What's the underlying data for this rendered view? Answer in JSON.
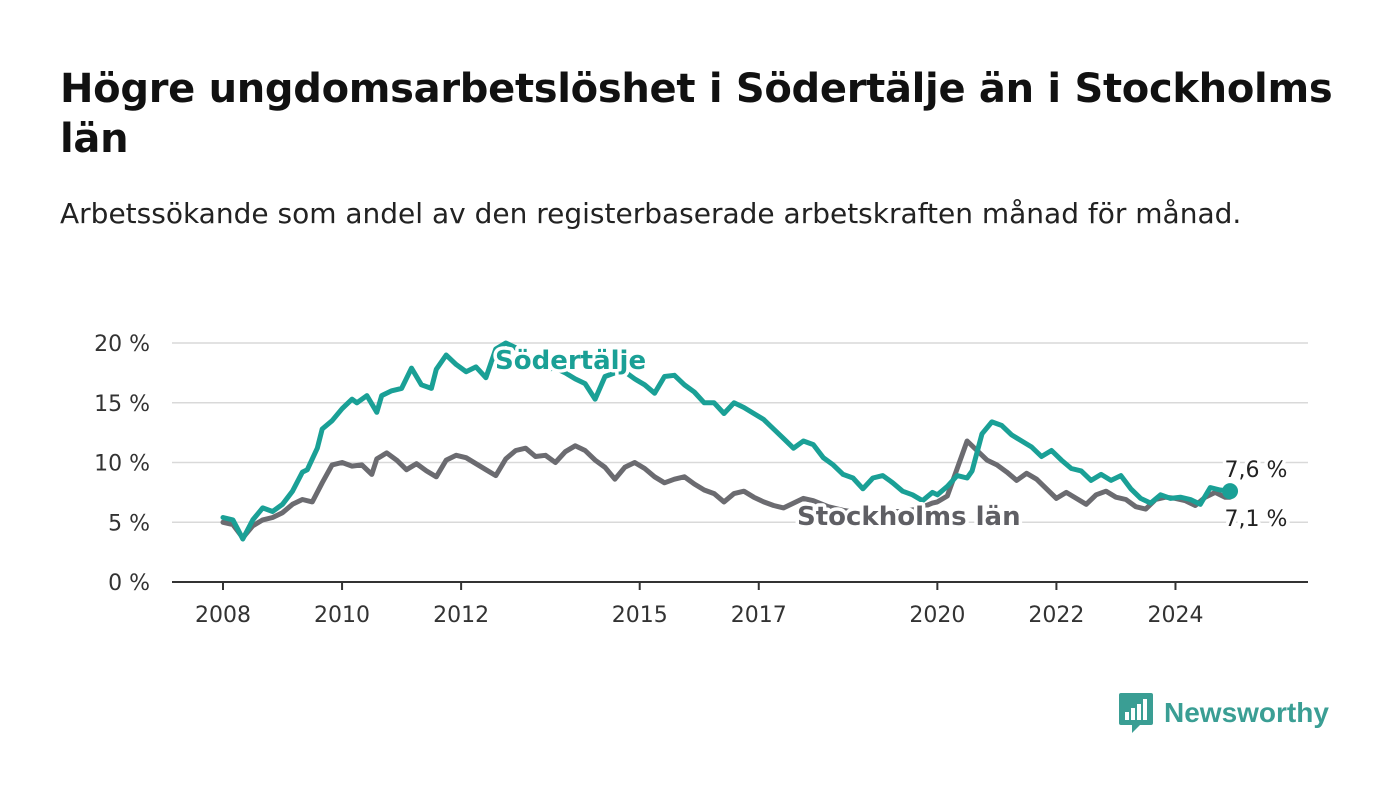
{
  "title": "Högre ungdomsarbetslöshet i Södertälje än i Stockholms län",
  "subtitle": "Arbetssökande som andel av den registerbaserade arbetskraften månad för månad.",
  "brand": {
    "name": "Newsworthy",
    "color": "#3a9e94",
    "icon": "bar-chart-logo-icon"
  },
  "chart_data": {
    "type": "line",
    "grid": true,
    "legend": "inline labels on lines",
    "ylim": [
      0,
      20
    ],
    "xlim": [
      "2008-01",
      "2025-12"
    ],
    "y_ticks": [
      {
        "value": 0,
        "label": "0 %"
      },
      {
        "value": 5,
        "label": "5 %"
      },
      {
        "value": 10,
        "label": "10 %"
      },
      {
        "value": 15,
        "label": "15 %"
      },
      {
        "value": 20,
        "label": "20 %"
      }
    ],
    "x_ticks": [
      {
        "value": "2008-01",
        "label": "2008"
      },
      {
        "value": "2010-01",
        "label": "2010"
      },
      {
        "value": "2012-01",
        "label": "2012"
      },
      {
        "value": "2015-01",
        "label": "2015"
      },
      {
        "value": "2017-01",
        "label": "2017"
      },
      {
        "value": "2020-01",
        "label": "2020"
      },
      {
        "value": "2022-01",
        "label": "2022"
      },
      {
        "value": "2024-01",
        "label": "2024"
      }
    ],
    "series": [
      {
        "name": "Södertälje",
        "color": "#1aa096",
        "end_label": "7,6 %",
        "values": [
          [
            "2008-01",
            5.4
          ],
          [
            "2008-03",
            5.2
          ],
          [
            "2008-04",
            4.4
          ],
          [
            "2008-05",
            3.6
          ],
          [
            "2008-07",
            5.2
          ],
          [
            "2008-09",
            6.2
          ],
          [
            "2008-11",
            5.9
          ],
          [
            "2009-01",
            6.5
          ],
          [
            "2009-03",
            7.6
          ],
          [
            "2009-05",
            9.2
          ],
          [
            "2009-06",
            9.4
          ],
          [
            "2009-08",
            11.2
          ],
          [
            "2009-09",
            12.8
          ],
          [
            "2009-11",
            13.5
          ],
          [
            "2010-01",
            14.5
          ],
          [
            "2010-03",
            15.3
          ],
          [
            "2010-04",
            15.0
          ],
          [
            "2010-06",
            15.6
          ],
          [
            "2010-08",
            14.2
          ],
          [
            "2010-09",
            15.6
          ],
          [
            "2010-11",
            16.0
          ],
          [
            "2011-01",
            16.2
          ],
          [
            "2011-03",
            17.9
          ],
          [
            "2011-05",
            16.5
          ],
          [
            "2011-07",
            16.2
          ],
          [
            "2011-08",
            17.8
          ],
          [
            "2011-10",
            19.0
          ],
          [
            "2011-12",
            18.2
          ],
          [
            "2012-02",
            17.6
          ],
          [
            "2012-04",
            18.0
          ],
          [
            "2012-06",
            17.1
          ],
          [
            "2012-08",
            19.5
          ],
          [
            "2012-10",
            20.0
          ],
          [
            "2012-12",
            19.6
          ],
          [
            "2013-02",
            18.8
          ],
          [
            "2013-04",
            18.4
          ],
          [
            "2013-06",
            17.8
          ],
          [
            "2013-08",
            17.9
          ],
          [
            "2013-10",
            17.5
          ],
          [
            "2013-12",
            17.0
          ],
          [
            "2014-02",
            16.6
          ],
          [
            "2014-04",
            15.3
          ],
          [
            "2014-06",
            17.2
          ],
          [
            "2014-08",
            17.5
          ],
          [
            "2014-10",
            17.6
          ],
          [
            "2014-12",
            17.0
          ],
          [
            "2015-02",
            16.5
          ],
          [
            "2015-04",
            15.8
          ],
          [
            "2015-06",
            17.2
          ],
          [
            "2015-08",
            17.3
          ],
          [
            "2015-10",
            16.5
          ],
          [
            "2015-12",
            15.9
          ],
          [
            "2016-02",
            15.0
          ],
          [
            "2016-04",
            15.0
          ],
          [
            "2016-06",
            14.1
          ],
          [
            "2016-08",
            15.0
          ],
          [
            "2016-10",
            14.6
          ],
          [
            "2016-12",
            14.1
          ],
          [
            "2017-02",
            13.6
          ],
          [
            "2017-04",
            12.8
          ],
          [
            "2017-06",
            12.0
          ],
          [
            "2017-08",
            11.2
          ],
          [
            "2017-10",
            11.8
          ],
          [
            "2017-12",
            11.5
          ],
          [
            "2018-02",
            10.4
          ],
          [
            "2018-04",
            9.8
          ],
          [
            "2018-06",
            9.0
          ],
          [
            "2018-08",
            8.7
          ],
          [
            "2018-10",
            7.8
          ],
          [
            "2018-12",
            8.7
          ],
          [
            "2019-02",
            8.9
          ],
          [
            "2019-04",
            8.3
          ],
          [
            "2019-06",
            7.6
          ],
          [
            "2019-08",
            7.3
          ],
          [
            "2019-10",
            6.8
          ],
          [
            "2019-12",
            7.5
          ],
          [
            "2020-01",
            7.3
          ],
          [
            "2020-03",
            8.0
          ],
          [
            "2020-05",
            8.9
          ],
          [
            "2020-07",
            8.7
          ],
          [
            "2020-08",
            9.3
          ],
          [
            "2020-10",
            12.4
          ],
          [
            "2020-12",
            13.4
          ],
          [
            "2021-02",
            13.1
          ],
          [
            "2021-04",
            12.3
          ],
          [
            "2021-06",
            11.8
          ],
          [
            "2021-08",
            11.3
          ],
          [
            "2021-10",
            10.5
          ],
          [
            "2021-12",
            11.0
          ],
          [
            "2022-02",
            10.2
          ],
          [
            "2022-04",
            9.5
          ],
          [
            "2022-06",
            9.3
          ],
          [
            "2022-08",
            8.5
          ],
          [
            "2022-10",
            9.0
          ],
          [
            "2022-12",
            8.5
          ],
          [
            "2023-02",
            8.9
          ],
          [
            "2023-04",
            7.8
          ],
          [
            "2023-06",
            7.0
          ],
          [
            "2023-08",
            6.6
          ],
          [
            "2023-10",
            7.3
          ],
          [
            "2023-12",
            7.0
          ],
          [
            "2024-02",
            7.1
          ],
          [
            "2024-04",
            6.9
          ],
          [
            "2024-06",
            6.5
          ],
          [
            "2024-08",
            7.9
          ],
          [
            "2024-10",
            7.7
          ],
          [
            "2024-12",
            7.6
          ]
        ]
      },
      {
        "name": "Stockholms län",
        "color": "#6b6b70",
        "end_label": "7,1 %",
        "values": [
          [
            "2008-01",
            5.0
          ],
          [
            "2008-03",
            4.8
          ],
          [
            "2008-05",
            3.7
          ],
          [
            "2008-07",
            4.7
          ],
          [
            "2008-09",
            5.2
          ],
          [
            "2008-11",
            5.4
          ],
          [
            "2009-01",
            5.8
          ],
          [
            "2009-03",
            6.5
          ],
          [
            "2009-05",
            6.9
          ],
          [
            "2009-07",
            6.7
          ],
          [
            "2009-09",
            8.3
          ],
          [
            "2009-11",
            9.8
          ],
          [
            "2010-01",
            10.0
          ],
          [
            "2010-03",
            9.7
          ],
          [
            "2010-05",
            9.8
          ],
          [
            "2010-07",
            9.0
          ],
          [
            "2010-08",
            10.3
          ],
          [
            "2010-10",
            10.8
          ],
          [
            "2010-12",
            10.2
          ],
          [
            "2011-02",
            9.4
          ],
          [
            "2011-04",
            9.9
          ],
          [
            "2011-06",
            9.3
          ],
          [
            "2011-08",
            8.8
          ],
          [
            "2011-10",
            10.2
          ],
          [
            "2011-12",
            10.6
          ],
          [
            "2012-02",
            10.4
          ],
          [
            "2012-04",
            9.9
          ],
          [
            "2012-06",
            9.4
          ],
          [
            "2012-08",
            8.9
          ],
          [
            "2012-10",
            10.3
          ],
          [
            "2012-12",
            11.0
          ],
          [
            "2013-02",
            11.2
          ],
          [
            "2013-04",
            10.5
          ],
          [
            "2013-06",
            10.6
          ],
          [
            "2013-08",
            10.0
          ],
          [
            "2013-10",
            10.9
          ],
          [
            "2013-12",
            11.4
          ],
          [
            "2014-02",
            11.0
          ],
          [
            "2014-04",
            10.2
          ],
          [
            "2014-06",
            9.6
          ],
          [
            "2014-08",
            8.6
          ],
          [
            "2014-10",
            9.6
          ],
          [
            "2014-12",
            10.0
          ],
          [
            "2015-02",
            9.5
          ],
          [
            "2015-04",
            8.8
          ],
          [
            "2015-06",
            8.3
          ],
          [
            "2015-08",
            8.6
          ],
          [
            "2015-10",
            8.8
          ],
          [
            "2015-12",
            8.2
          ],
          [
            "2016-02",
            7.7
          ],
          [
            "2016-04",
            7.4
          ],
          [
            "2016-06",
            6.7
          ],
          [
            "2016-08",
            7.4
          ],
          [
            "2016-10",
            7.6
          ],
          [
            "2016-12",
            7.1
          ],
          [
            "2017-02",
            6.7
          ],
          [
            "2017-04",
            6.4
          ],
          [
            "2017-06",
            6.2
          ],
          [
            "2017-08",
            6.6
          ],
          [
            "2017-10",
            7.0
          ],
          [
            "2017-12",
            6.8
          ],
          [
            "2018-03",
            6.3
          ],
          [
            "2018-06",
            6.0
          ],
          [
            "2018-09",
            5.8
          ],
          [
            "2018-12",
            5.9
          ],
          [
            "2019-03",
            5.9
          ],
          [
            "2019-06",
            5.9
          ],
          [
            "2019-09",
            6.1
          ],
          [
            "2019-12",
            6.6
          ],
          [
            "2020-01",
            6.7
          ],
          [
            "2020-03",
            7.2
          ],
          [
            "2020-05",
            9.5
          ],
          [
            "2020-07",
            11.8
          ],
          [
            "2020-09",
            11.0
          ],
          [
            "2020-11",
            10.2
          ],
          [
            "2021-01",
            9.8
          ],
          [
            "2021-03",
            9.2
          ],
          [
            "2021-05",
            8.5
          ],
          [
            "2021-07",
            9.1
          ],
          [
            "2021-09",
            8.6
          ],
          [
            "2021-11",
            7.8
          ],
          [
            "2022-01",
            7.0
          ],
          [
            "2022-03",
            7.5
          ],
          [
            "2022-05",
            7.0
          ],
          [
            "2022-07",
            6.5
          ],
          [
            "2022-09",
            7.3
          ],
          [
            "2022-11",
            7.6
          ],
          [
            "2023-01",
            7.1
          ],
          [
            "2023-03",
            6.9
          ],
          [
            "2023-05",
            6.3
          ],
          [
            "2023-07",
            6.1
          ],
          [
            "2023-09",
            6.9
          ],
          [
            "2023-11",
            7.1
          ],
          [
            "2024-01",
            7.0
          ],
          [
            "2024-03",
            6.8
          ],
          [
            "2024-05",
            6.4
          ],
          [
            "2024-07",
            7.1
          ],
          [
            "2024-09",
            7.5
          ],
          [
            "2024-11",
            7.1
          ],
          [
            "2024-12",
            7.1
          ]
        ]
      }
    ]
  }
}
